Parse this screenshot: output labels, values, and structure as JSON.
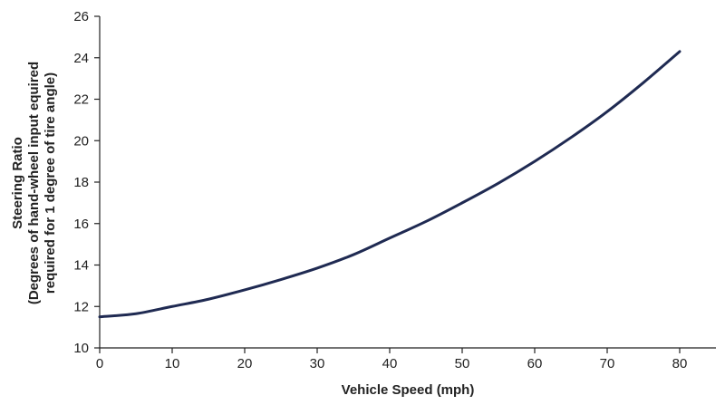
{
  "chart_data": {
    "type": "line",
    "title": "",
    "xlabel": "Vehicle Speed (mph)",
    "ylabel_lines": [
      "Steering Ratio",
      "(Degrees of hand-wheel input  equired",
      "required for 1 degree of tire angle)"
    ],
    "xlim": [
      0,
      85
    ],
    "ylim": [
      10,
      26
    ],
    "x_ticks": [
      0,
      10,
      20,
      30,
      40,
      50,
      60,
      70,
      80
    ],
    "y_ticks": [
      10,
      12,
      14,
      16,
      18,
      20,
      22,
      24,
      26
    ],
    "grid": false,
    "series": [
      {
        "color": "#1f2a52",
        "x": [
          0,
          5,
          10,
          15,
          20,
          25,
          30,
          35,
          40,
          45,
          50,
          55,
          60,
          65,
          70,
          75,
          80
        ],
        "y": [
          11.5,
          11.65,
          12.0,
          12.35,
          12.8,
          13.3,
          13.85,
          14.5,
          15.3,
          16.1,
          17.0,
          17.95,
          19.0,
          20.15,
          21.4,
          22.8,
          24.3
        ]
      }
    ]
  }
}
